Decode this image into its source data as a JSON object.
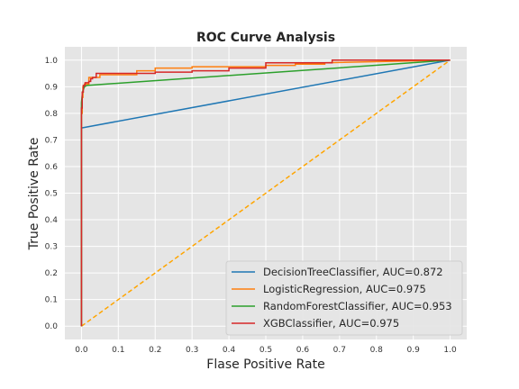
{
  "chart_data": {
    "type": "line",
    "title": "ROC Curve Analysis",
    "xlabel": "Flase Positive Rate",
    "ylabel": "True Positive Rate",
    "xlim": [
      -0.045,
      1.045
    ],
    "ylim": [
      -0.05,
      1.05
    ],
    "xticks": [
      "0.0",
      "0.1",
      "0.2",
      "0.3",
      "0.4",
      "0.5",
      "0.6",
      "0.7",
      "0.8",
      "0.9",
      "1.0"
    ],
    "yticks": [
      "0.0",
      "0.1",
      "0.2",
      "0.3",
      "0.4",
      "0.5",
      "0.6",
      "0.7",
      "0.8",
      "0.9",
      "1.0"
    ],
    "grid": true,
    "legend_position": "bottom-right",
    "series": [
      {
        "name": "DecisionTreeClassifier, AUC=0.872",
        "color": "#1f77b4",
        "x": [
          0.0,
          0.0,
          1.0
        ],
        "y": [
          0.0,
          0.745,
          1.0
        ]
      },
      {
        "name": "LogisticRegression, AUC=0.975",
        "color": "#ff7f0e",
        "x": [
          0.0,
          0.0,
          0.002,
          0.002,
          0.004,
          0.004,
          0.008,
          0.008,
          0.02,
          0.02,
          0.05,
          0.05,
          0.15,
          0.15,
          0.2,
          0.2,
          0.3,
          0.3,
          0.5,
          0.5,
          0.58,
          0.58,
          0.66,
          0.66,
          1.0
        ],
        "y": [
          0.0,
          0.8,
          0.8,
          0.86,
          0.86,
          0.9,
          0.9,
          0.91,
          0.91,
          0.935,
          0.935,
          0.945,
          0.945,
          0.96,
          0.96,
          0.97,
          0.97,
          0.975,
          0.975,
          0.98,
          0.98,
          0.985,
          0.985,
          0.99,
          1.0
        ]
      },
      {
        "name": "RandomForestClassifier, AUC=0.953",
        "color": "#2ca02c",
        "x": [
          0.0,
          0.0,
          0.002,
          0.004,
          0.008,
          0.015,
          1.0
        ],
        "y": [
          0.0,
          0.84,
          0.87,
          0.885,
          0.9,
          0.905,
          1.0
        ]
      },
      {
        "name": "XGBClassifier, AUC=0.975",
        "color": "#d62728",
        "x": [
          0.0,
          0.0,
          0.002,
          0.002,
          0.005,
          0.005,
          0.01,
          0.01,
          0.02,
          0.02,
          0.025,
          0.025,
          0.03,
          0.03,
          0.04,
          0.04,
          0.08,
          0.08,
          0.2,
          0.2,
          0.3,
          0.3,
          0.4,
          0.4,
          0.5,
          0.5,
          0.68,
          0.68,
          1.0
        ],
        "y": [
          0.0,
          0.82,
          0.82,
          0.88,
          0.88,
          0.905,
          0.905,
          0.915,
          0.915,
          0.92,
          0.92,
          0.93,
          0.93,
          0.935,
          0.935,
          0.95,
          0.95,
          0.95,
          0.95,
          0.955,
          0.955,
          0.96,
          0.96,
          0.97,
          0.97,
          0.99,
          0.99,
          1.0,
          1.0
        ]
      },
      {
        "color": "#ffa500",
        "dashed": true,
        "x": [
          0.0,
          1.0
        ],
        "y": [
          0.0,
          1.0
        ]
      }
    ]
  }
}
